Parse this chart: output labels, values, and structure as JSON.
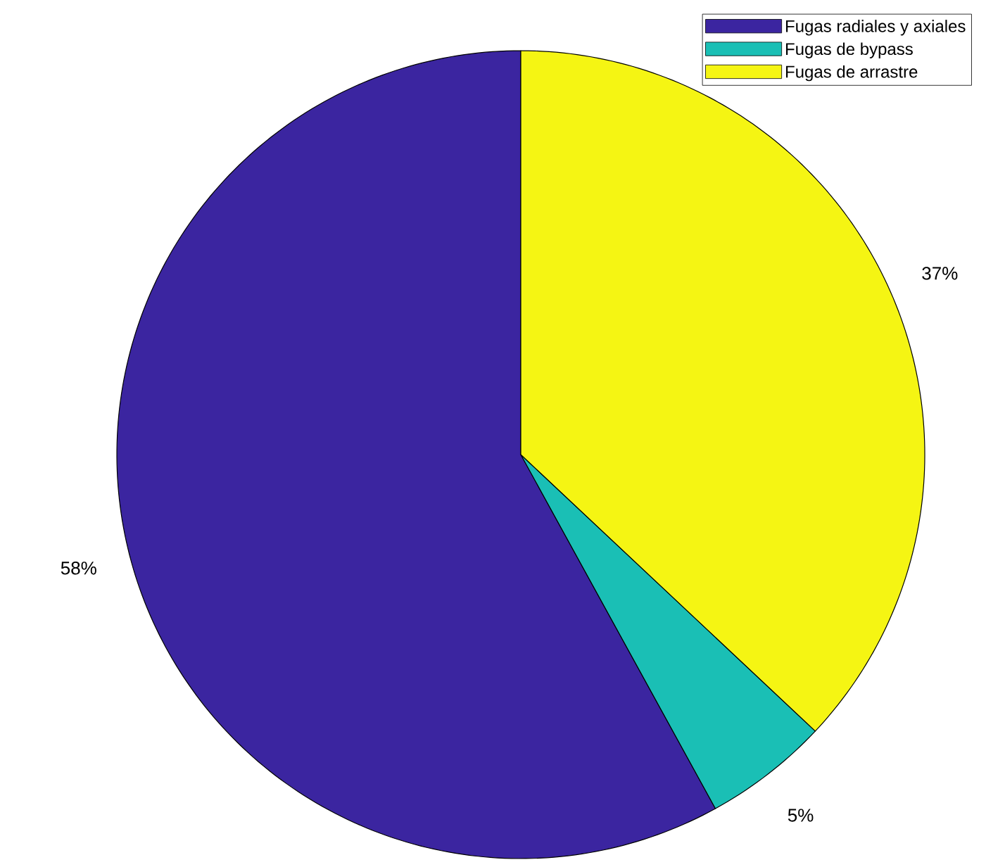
{
  "chart_data": {
    "type": "pie",
    "categories": [
      "Fugas radiales y axiales",
      "Fugas de bypass",
      "Fugas de arrastre"
    ],
    "values": [
      58,
      5,
      37
    ],
    "colors": [
      "#3b25a0",
      "#1abfb5",
      "#f5f513"
    ],
    "value_labels": [
      "58%",
      "5%",
      "37%"
    ],
    "legend": "top right"
  }
}
